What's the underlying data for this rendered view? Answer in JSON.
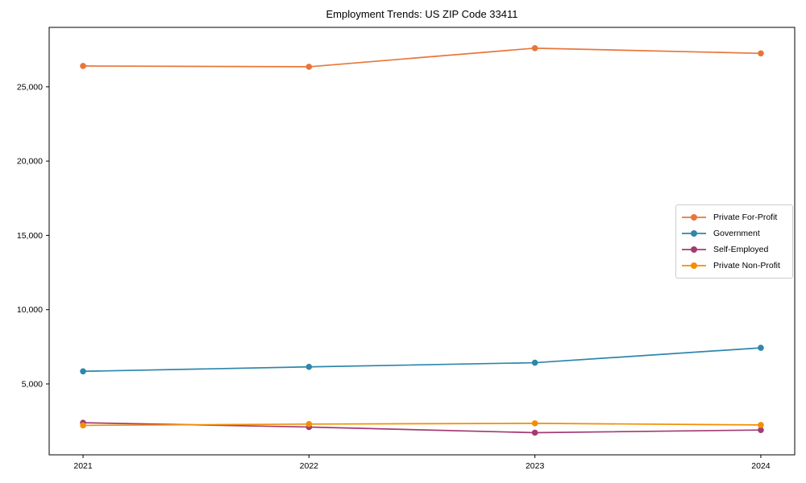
{
  "figure": {
    "background": "#ffffff",
    "axes_edge_color": "#000000",
    "legend_border_color": "#cccccc"
  },
  "chart_data": {
    "type": "line",
    "title": "Employment Trends: US ZIP Code 33411",
    "xlabel": "",
    "ylabel": "",
    "grid": false,
    "legend_position": "center-right",
    "x": [
      2021,
      2022,
      2023,
      2024
    ],
    "x_tick_labels": [
      "2021",
      "2022",
      "2023",
      "2024"
    ],
    "y_tick_values": [
      5000,
      10000,
      15000,
      20000,
      25000
    ],
    "y_tick_labels": [
      "5,000",
      "10,000",
      "15,000",
      "20,000",
      "25,000"
    ],
    "xlim": [
      2020.85,
      2024.15
    ],
    "ylim": [
      230,
      29000
    ],
    "series": [
      {
        "name": "Private For-Profit",
        "color": "#E8763A",
        "values": [
          26400,
          26350,
          27600,
          27250
        ]
      },
      {
        "name": "Government",
        "color": "#2E86AB",
        "values": [
          5850,
          6150,
          6430,
          7430
        ]
      },
      {
        "name": "Self-Employed",
        "color": "#A23B72",
        "values": [
          2390,
          2100,
          1720,
          1900
        ]
      },
      {
        "name": "Private Non-Profit",
        "color": "#F18F01",
        "values": [
          2210,
          2300,
          2350,
          2240
        ]
      }
    ]
  }
}
